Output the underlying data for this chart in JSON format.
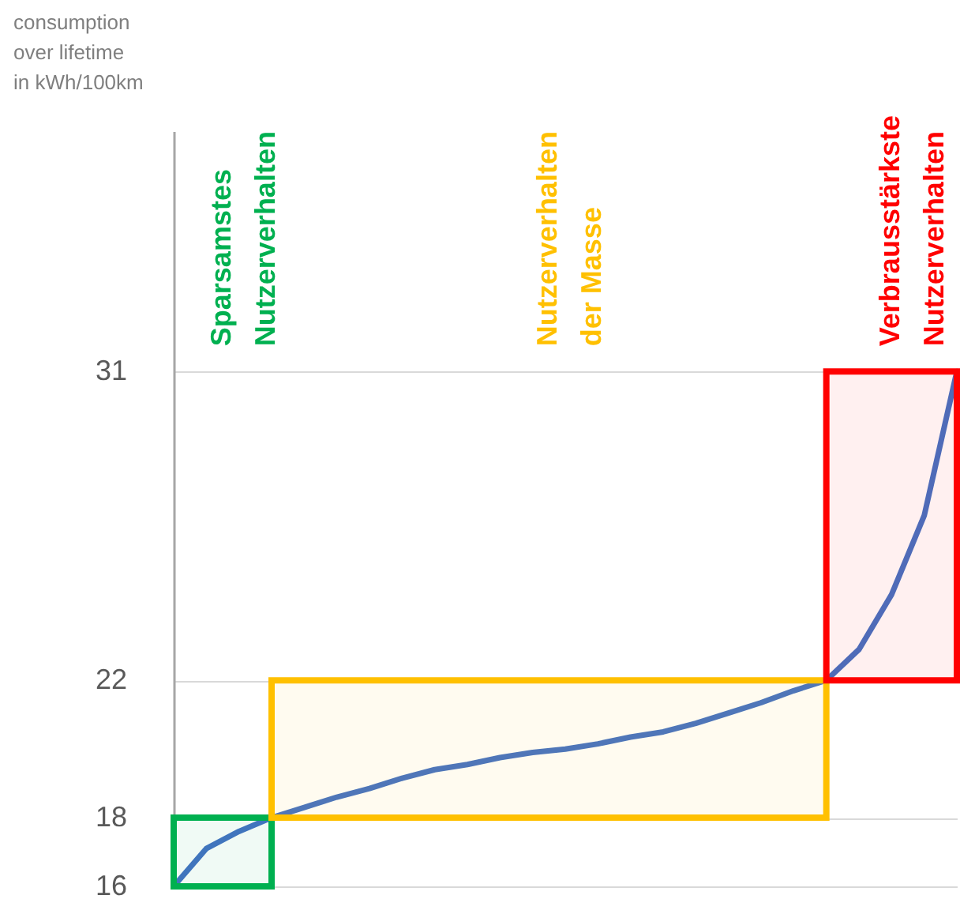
{
  "chart_data": {
    "type": "line",
    "ylabel": "consumption over lifetime in kWh/100km",
    "categories": [
      null,
      null,
      null,
      null,
      null,
      null,
      null,
      null,
      null,
      null,
      null,
      null,
      null,
      null,
      null,
      null,
      null,
      null,
      null,
      null,
      null,
      null,
      null,
      null,
      null
    ],
    "series": [
      {
        "color": "#4472c4",
        "values": [
          16.0,
          17.1,
          17.6,
          18.0,
          18.3,
          18.6,
          18.85,
          19.15,
          19.4,
          19.55,
          19.75,
          19.9,
          20.0,
          20.15,
          20.35,
          20.5,
          20.75,
          21.05,
          21.35,
          21.7,
          22.0,
          22.9,
          24.5,
          26.8,
          31.0
        ]
      }
    ],
    "ylim": [
      16,
      38
    ],
    "yticks": [
      16,
      18,
      22,
      31
    ],
    "grid": "y",
    "bands": [
      {
        "axis": "y",
        "from": 16,
        "to": 18,
        "label": "Sparsamstes\nNutzerverhalten",
        "color": "#00b050"
      },
      {
        "axis": "y",
        "from": 18,
        "to": 22,
        "label": "Nutzerverhalten\nder Masse",
        "color": "#ffc000"
      },
      {
        "axis": "y",
        "from": 22,
        "to": 31,
        "label": "Verbrausstärkste\nNutzerverhalten",
        "color": "#ff0000"
      }
    ]
  }
}
